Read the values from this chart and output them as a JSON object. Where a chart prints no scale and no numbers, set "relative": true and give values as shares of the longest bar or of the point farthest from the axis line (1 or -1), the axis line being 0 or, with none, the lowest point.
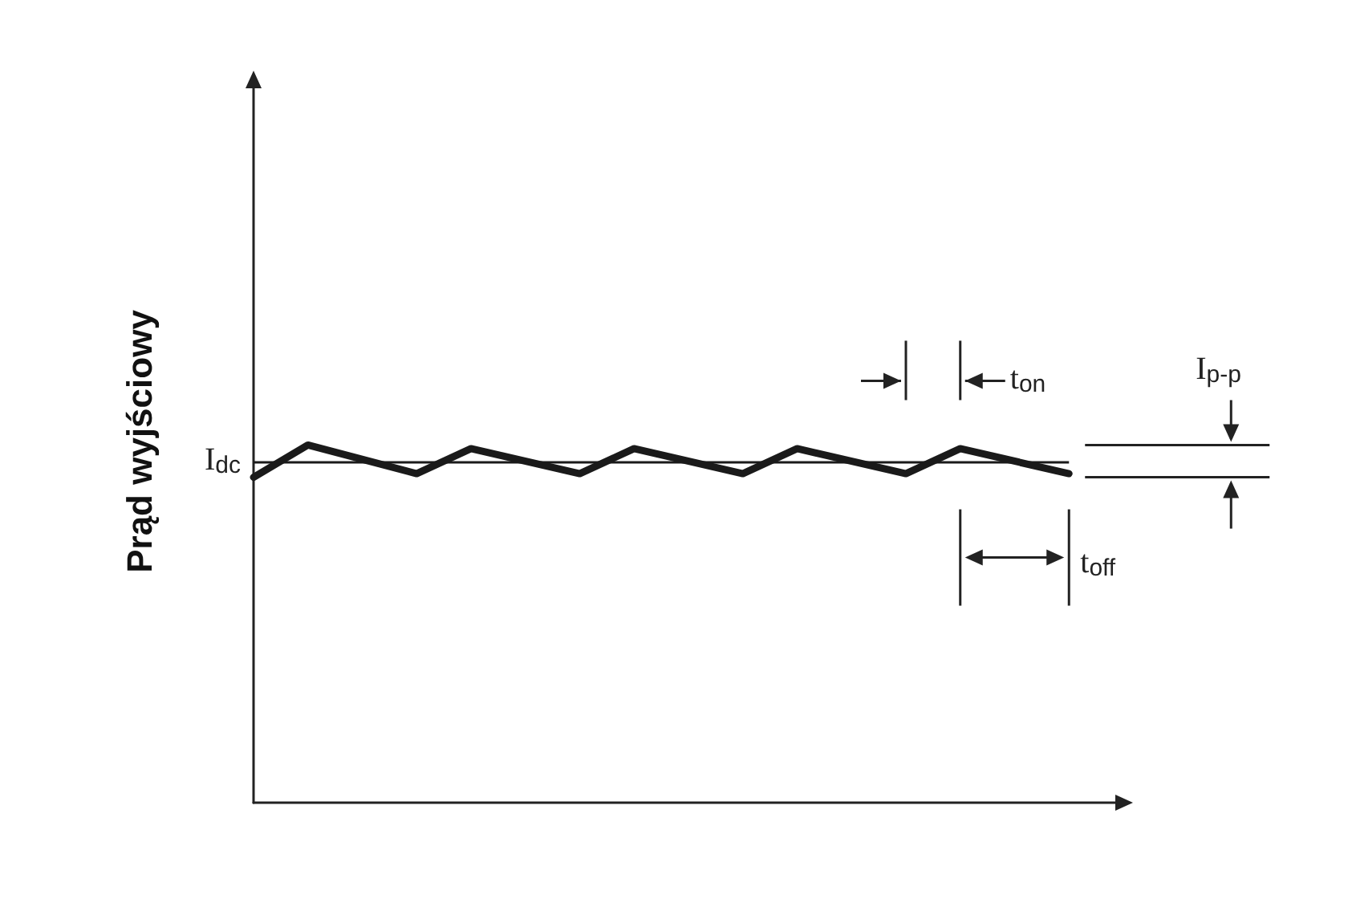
{
  "chart_data": {
    "type": "line",
    "ylabel": "Prąd wyjściowy",
    "relative": true,
    "marker": "none",
    "line_style": "solid",
    "categories": [
      null,
      null,
      null,
      null,
      null,
      null,
      null,
      null,
      null,
      null,
      null,
      null,
      null,
      null,
      null,
      null,
      null
    ],
    "series": [
      {
        "color": "#1a1a1a",
        "values": [
          0.91,
          1,
          null,
          0.92,
          0.99,
          null,
          0.92,
          0.99,
          null,
          0.92,
          0.99,
          null,
          0.92,
          0.99,
          null,
          0.92,
          null
        ]
      }
    ],
    "ref_lines": [
      {
        "axis": "y",
        "value": 0.955,
        "label": "I$_{dc}$",
        "color": "#1a1a1a"
      }
    ],
    "annotations": [
      "t$_{on}$",
      "t$_{off}$",
      "I$_{p-p}$"
    ]
  }
}
